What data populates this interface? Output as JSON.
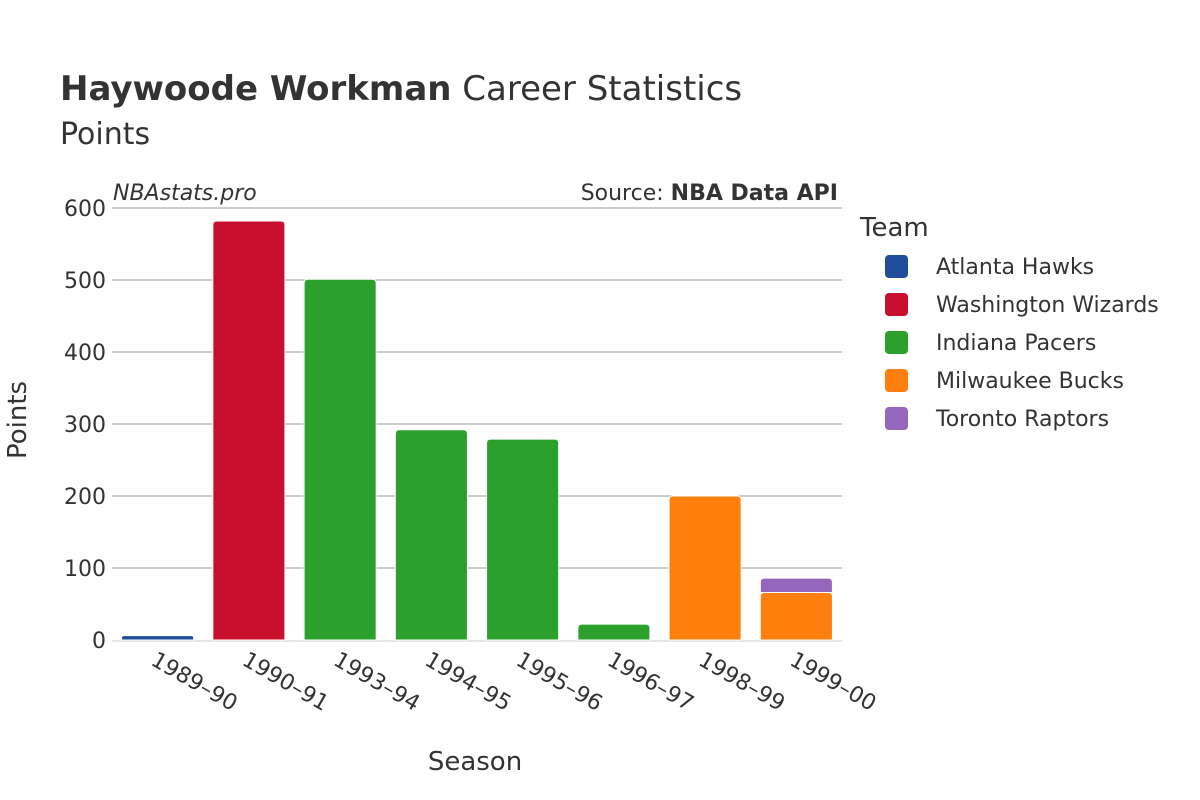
{
  "title": {
    "bold": "Haywoode Workman",
    "rest": " Career Statistics",
    "subtitle": "Points"
  },
  "watermark": "NBAstats.pro",
  "source": {
    "prefix": "Source: ",
    "name": "NBA Data API"
  },
  "legend": {
    "title": "Team"
  },
  "chart_data": {
    "type": "bar",
    "stacked": true,
    "xlabel": "Season",
    "ylabel": "Points",
    "ylim": [
      0,
      600
    ],
    "yticks": [
      0,
      100,
      200,
      300,
      400,
      500,
      600
    ],
    "categories": [
      "1989–90",
      "1990–91",
      "1993–94",
      "1994–95",
      "1995–96",
      "1996–97",
      "1998–99",
      "1999–00"
    ],
    "series": [
      {
        "name": "Atlanta Hawks",
        "color": "#1f4e9c",
        "values": [
          6,
          0,
          0,
          0,
          0,
          0,
          0,
          0
        ]
      },
      {
        "name": "Washington Wizards",
        "color": "#c8102e",
        "values": [
          0,
          582,
          0,
          0,
          0,
          0,
          0,
          0
        ]
      },
      {
        "name": "Indiana Pacers",
        "color": "#2ca02c",
        "values": [
          0,
          0,
          501,
          292,
          279,
          22,
          0,
          0
        ]
      },
      {
        "name": "Milwaukee Bucks",
        "color": "#ff7f0e",
        "values": [
          0,
          0,
          0,
          0,
          0,
          0,
          200,
          66
        ]
      },
      {
        "name": "Toronto Raptors",
        "color": "#9467bd",
        "values": [
          0,
          0,
          0,
          0,
          0,
          0,
          0,
          20
        ]
      }
    ],
    "grid": true,
    "legend_position": "right"
  }
}
